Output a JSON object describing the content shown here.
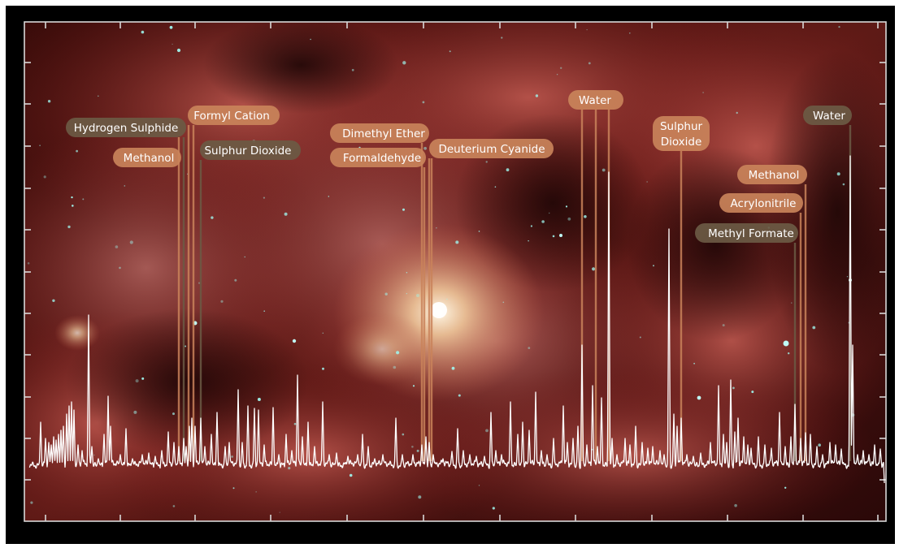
{
  "chart_data": {
    "type": "line",
    "title": "",
    "xlabel": "",
    "ylabel": "",
    "grid": false,
    "background": "infrared nebula image",
    "colors": {
      "spectrum": "#ffffff",
      "axes": "#d8d8d8",
      "label_warm": "#c9835a",
      "label_dark": "#6b5a44"
    },
    "annotations": [
      {
        "text": "Hydrogen Sulphide",
        "style": "dark"
      },
      {
        "text": "Formyl Cation",
        "style": "warm"
      },
      {
        "text": "Methanol",
        "style": "warm"
      },
      {
        "text": "Sulphur Dioxide",
        "style": "dark"
      },
      {
        "text": "Dimethyl Ether",
        "style": "warm"
      },
      {
        "text": "Formaldehyde",
        "style": "warm"
      },
      {
        "text": "Deuterium Cyanide",
        "style": "warm"
      },
      {
        "text": "Water",
        "style": "warm"
      },
      {
        "text": "Sulphur Dioxide",
        "style": "warm"
      },
      {
        "text": "Methanol",
        "style": "warm"
      },
      {
        "text": "Acrylonitrile",
        "style": "warm"
      },
      {
        "text": "Methyl Formate",
        "style": "dark"
      },
      {
        "text": "Water",
        "style": "dark"
      }
    ],
    "sulphur_dioxide_lines": [
      "Sulphur",
      "Dioxide"
    ]
  }
}
